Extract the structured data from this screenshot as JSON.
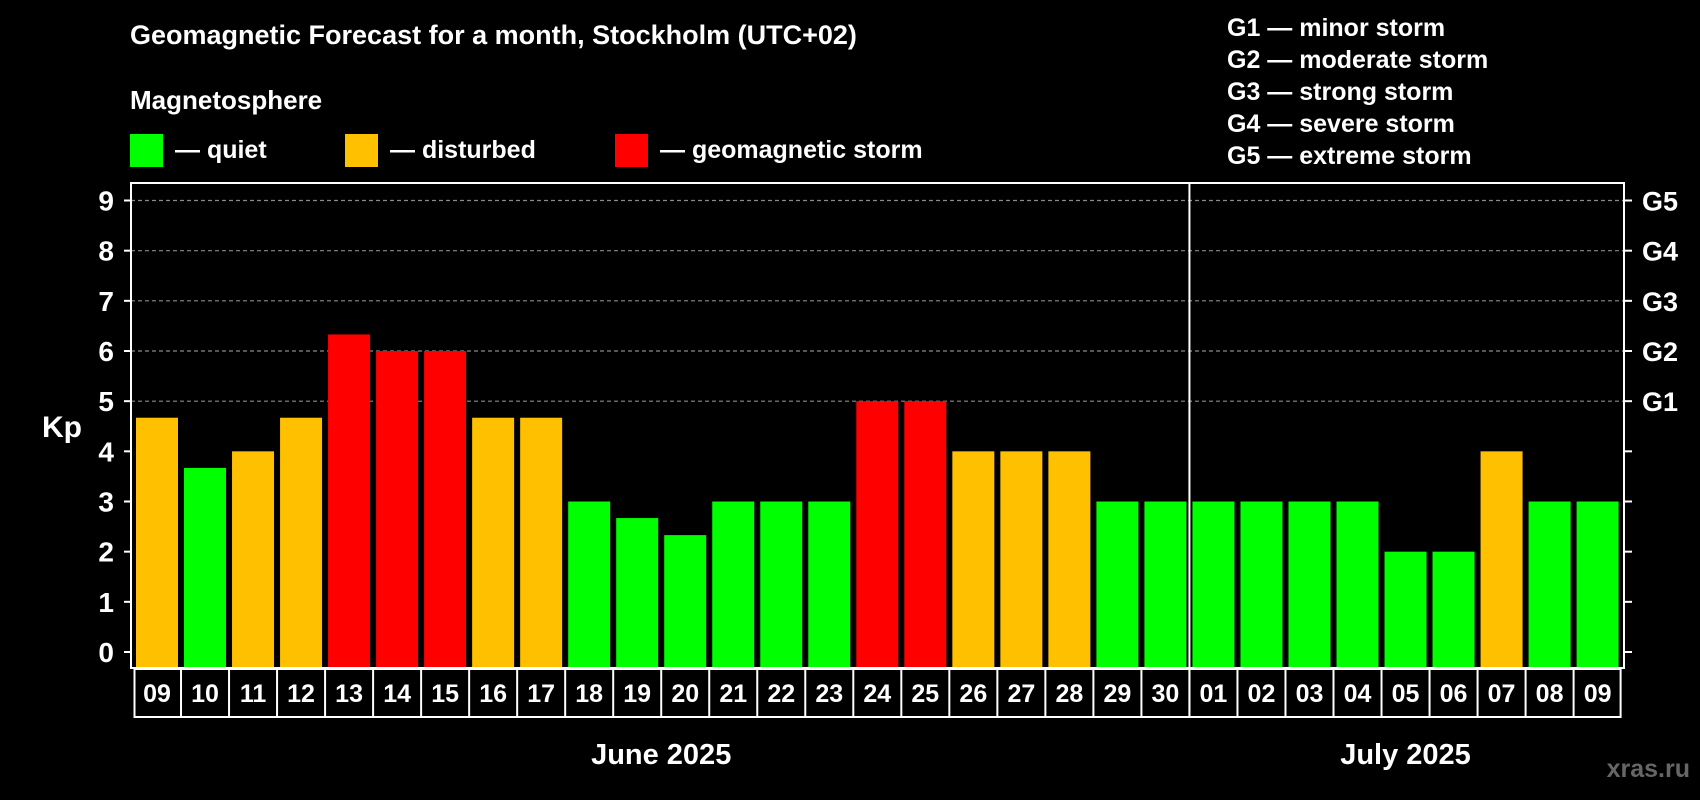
{
  "header": {
    "title": "Geomagnetic Forecast for a month, Stockholm (UTC+02)",
    "section_label": "Magnetosphere"
  },
  "legend": [
    {
      "label": "— quiet",
      "color": "#00ff00"
    },
    {
      "label": "— disturbed",
      "color": "#ffc000"
    },
    {
      "label": "— geomagnetic storm",
      "color": "#ff0000"
    }
  ],
  "storm_scale": [
    "G1 — minor storm",
    "G2 — moderate storm",
    "G3 — strong storm",
    "G4 — severe storm",
    "G5 — extreme storm"
  ],
  "watermark": "xras.ru",
  "chart_data": {
    "type": "bar",
    "title": "Geomagnetic Forecast for a month, Stockholm (UTC+02)",
    "ylabel": "Kp",
    "ylim": [
      0,
      9
    ],
    "yticks": [
      "0",
      "1",
      "2",
      "3",
      "4",
      "5",
      "6",
      "7",
      "8",
      "9"
    ],
    "right_axis": [
      {
        "label": "G1",
        "value": 5
      },
      {
        "label": "G2",
        "value": 6
      },
      {
        "label": "G3",
        "value": 7
      },
      {
        "label": "G4",
        "value": 8
      },
      {
        "label": "G5",
        "value": 9
      }
    ],
    "grid_lines": [
      5,
      6,
      7,
      8,
      9
    ],
    "categories": [
      "09",
      "10",
      "11",
      "12",
      "13",
      "14",
      "15",
      "16",
      "17",
      "18",
      "19",
      "20",
      "21",
      "22",
      "23",
      "24",
      "25",
      "26",
      "27",
      "28",
      "29",
      "30",
      "01",
      "02",
      "03",
      "04",
      "05",
      "06",
      "07",
      "08",
      "09"
    ],
    "values": [
      4.67,
      3.67,
      4.0,
      4.67,
      6.33,
      6.0,
      6.0,
      4.67,
      4.67,
      3.0,
      2.67,
      2.33,
      3.0,
      3.0,
      3.0,
      5.0,
      5.0,
      4.0,
      4.0,
      4.0,
      3.0,
      3.0,
      3.0,
      3.0,
      3.0,
      3.0,
      2.0,
      2.0,
      4.0,
      3.0,
      3.0
    ],
    "levels": [
      "disturbed",
      "quiet",
      "disturbed",
      "disturbed",
      "storm",
      "storm",
      "storm",
      "disturbed",
      "disturbed",
      "quiet",
      "quiet",
      "quiet",
      "quiet",
      "quiet",
      "quiet",
      "storm",
      "storm",
      "disturbed",
      "disturbed",
      "disturbed",
      "quiet",
      "quiet",
      "quiet",
      "quiet",
      "quiet",
      "quiet",
      "quiet",
      "quiet",
      "disturbed",
      "quiet",
      "quiet"
    ],
    "level_colors": {
      "quiet": "#00ff00",
      "disturbed": "#ffc000",
      "storm": "#ff0000"
    },
    "months": [
      {
        "label": "June 2025",
        "start_index": 0,
        "end_index": 21
      },
      {
        "label": "July 2025",
        "start_index": 22,
        "end_index": 30
      }
    ]
  }
}
